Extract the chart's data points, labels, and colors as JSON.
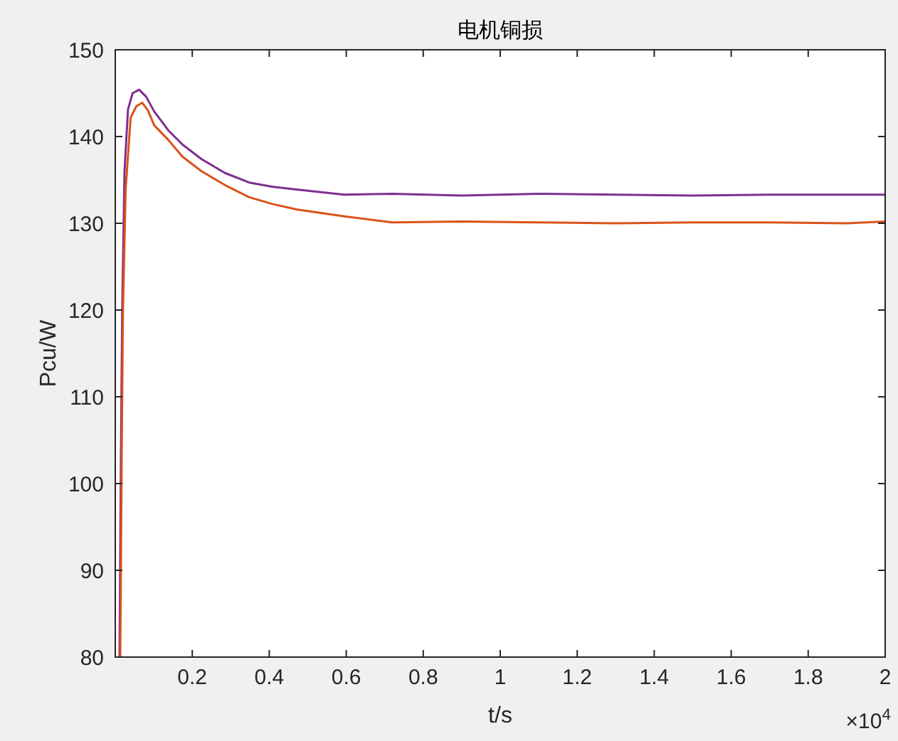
{
  "chart_data": {
    "type": "line",
    "title": "电机铜损",
    "xlabel": "t/s",
    "ylabel": "Pcu/W",
    "annotations": [
      "×10$^{4}$"
    ],
    "xlim": [
      0,
      2
    ],
    "xticks": [
      0.2,
      0.4,
      0.6,
      0.8,
      1,
      1.2,
      1.4,
      1.6,
      1.8,
      2
    ],
    "ylim": [
      80,
      150
    ],
    "yticks": [
      80,
      90,
      100,
      110,
      120,
      130,
      140,
      150
    ],
    "grid": false,
    "series": [
      {
        "color": "#7e2f8e",
        "x": [
          0.011,
          0.015,
          0.018,
          0.024,
          0.033,
          0.045,
          0.062,
          0.08,
          0.101,
          0.138,
          0.174,
          0.224,
          0.285,
          0.348,
          0.41,
          0.471,
          0.595,
          0.719,
          0.9,
          1.1,
          1.3,
          1.5,
          1.7,
          1.9,
          2
        ],
        "values": [
          80,
          105,
          120,
          136,
          143.1,
          145,
          145.4,
          144.6,
          142.9,
          140.7,
          139.1,
          137.4,
          135.8,
          134.7,
          134.2,
          133.9,
          133.3,
          133.4,
          133.2,
          133.4,
          133.3,
          133.2,
          133.3,
          133.3,
          133.3
        ]
      },
      {
        "color": "#d95319",
        "x": [
          0.013,
          0.017,
          0.02,
          0.027,
          0.04,
          0.055,
          0.07,
          0.085,
          0.101,
          0.138,
          0.174,
          0.224,
          0.285,
          0.348,
          0.41,
          0.471,
          0.595,
          0.719,
          0.9,
          1.1,
          1.3,
          1.5,
          1.7,
          1.9,
          2
        ],
        "values": [
          80,
          105,
          120,
          134,
          142.2,
          143.5,
          143.9,
          143,
          141.3,
          139.6,
          137.7,
          136,
          134.4,
          133,
          132.2,
          131.6,
          130.8,
          130.1,
          130.2,
          130.1,
          130,
          130.1,
          130.1,
          130,
          130.2
        ]
      }
    ]
  }
}
